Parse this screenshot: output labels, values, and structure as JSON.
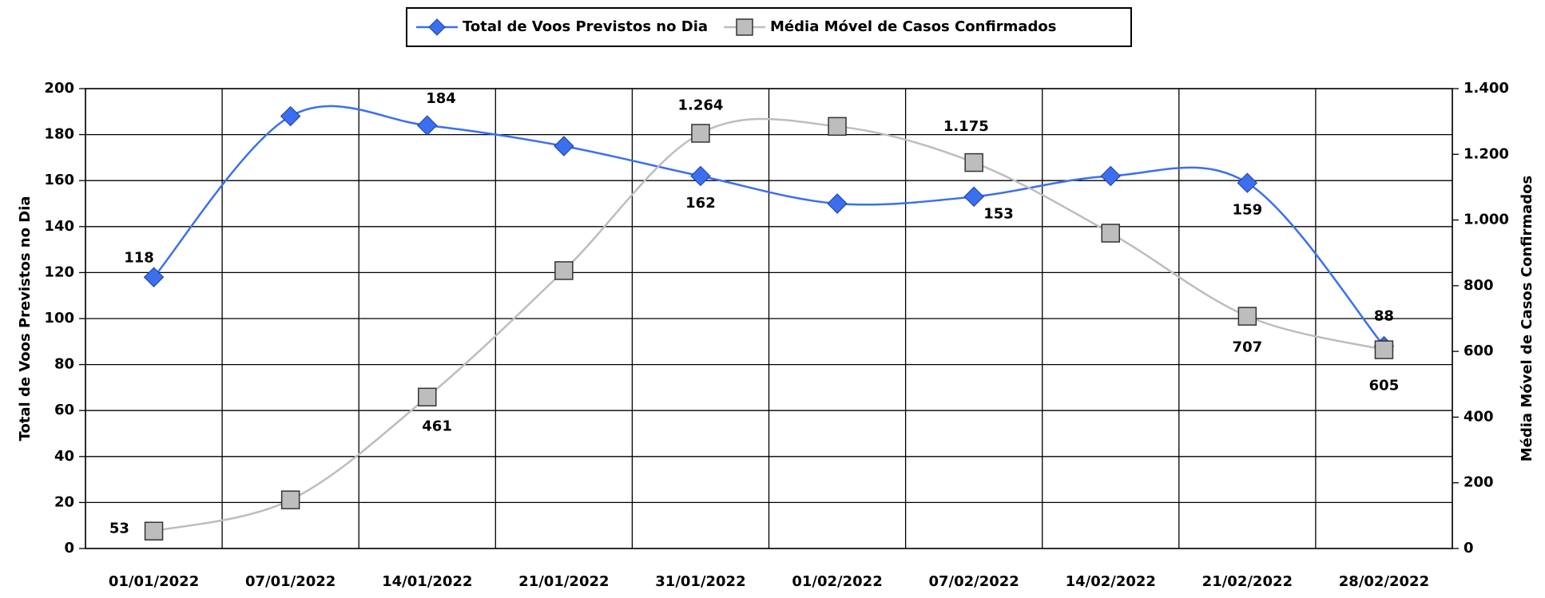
{
  "chart_data": {
    "type": "line",
    "categories": [
      "01/01/2022",
      "07/01/2022",
      "14/01/2022",
      "21/01/2022",
      "31/01/2022",
      "01/02/2022",
      "07/02/2022",
      "14/02/2022",
      "21/02/2022",
      "28/02/2022"
    ],
    "y_label": "Total de Voos Previstos no Dia",
    "y2_label": "Média Móvel de Casos Confirmados",
    "ylim": [
      0,
      200
    ],
    "yticks": [
      0,
      20,
      40,
      60,
      80,
      100,
      120,
      140,
      160,
      180,
      200
    ],
    "y2lim": [
      0,
      1400
    ],
    "y2ticks": [
      0,
      200,
      400,
      600,
      800,
      {
        "value": 1000,
        "label": "1.000"
      },
      {
        "value": 1200,
        "label": "1.200"
      },
      {
        "value": 1400,
        "label": "1.400"
      }
    ],
    "grid": true,
    "legend": "top",
    "series": [
      {
        "name": "Total de Voos Previstos no Dia",
        "color": "#3b6ff0",
        "marker": "diamond",
        "values": [
          118,
          188,
          184,
          175,
          162,
          150,
          153,
          162,
          159,
          88
        ],
        "value_labels": [
          "118",
          null,
          "184",
          null,
          "162",
          null,
          "153",
          null,
          "159",
          "88"
        ]
      },
      {
        "name": "Média Móvel de Casos Confirmados",
        "color": "#bdbdbd",
        "marker": "square",
        "axis": "y2",
        "values": [
          53,
          148,
          461,
          846,
          1264,
          1285,
          1175,
          960,
          707,
          605
        ],
        "value_labels": [
          "53",
          null,
          "461",
          null,
          "1.264",
          null,
          "1.175",
          null,
          "707",
          "605"
        ]
      }
    ]
  }
}
